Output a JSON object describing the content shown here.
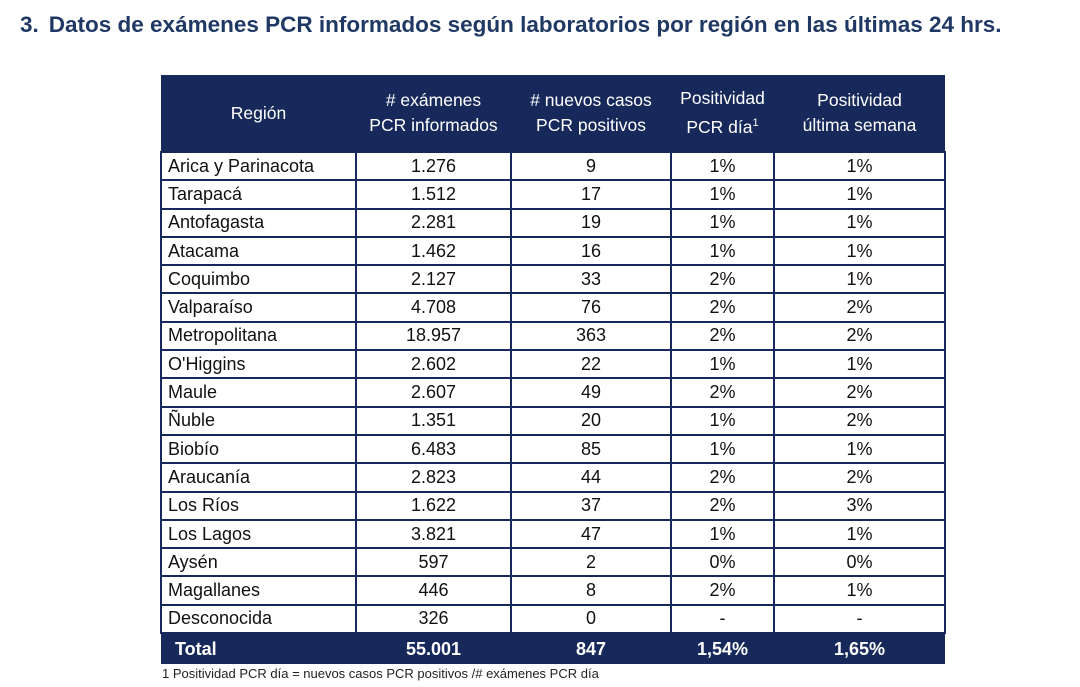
{
  "title": {
    "number": "3.",
    "text": "Datos de exámenes PCR informados según laboratorios por región en las últimas 24 hrs."
  },
  "table": {
    "headers": {
      "region": "Región",
      "examenes_1": "# exámenes",
      "examenes_2": "PCR informados",
      "casos_1": "# nuevos casos",
      "casos_2": "PCR positivos",
      "pos_dia_1": "Positividad",
      "pos_dia_2": "PCR día",
      "pos_dia_sup": "1",
      "pos_sem_1": "Positividad",
      "pos_sem_2": "última semana"
    },
    "rows": [
      {
        "region": "Arica y Parinacota",
        "examenes": "1.276",
        "casos": "9",
        "pos_dia": "1%",
        "pos_semana": "1%"
      },
      {
        "region": "Tarapacá",
        "examenes": "1.512",
        "casos": "17",
        "pos_dia": "1%",
        "pos_semana": "1%"
      },
      {
        "region": "Antofagasta",
        "examenes": "2.281",
        "casos": "19",
        "pos_dia": "1%",
        "pos_semana": "1%"
      },
      {
        "region": "Atacama",
        "examenes": "1.462",
        "casos": "16",
        "pos_dia": "1%",
        "pos_semana": "1%"
      },
      {
        "region": "Coquimbo",
        "examenes": "2.127",
        "casos": "33",
        "pos_dia": "2%",
        "pos_semana": "1%"
      },
      {
        "region": "Valparaíso",
        "examenes": "4.708",
        "casos": "76",
        "pos_dia": "2%",
        "pos_semana": "2%"
      },
      {
        "region": "Metropolitana",
        "examenes": "18.957",
        "casos": "363",
        "pos_dia": "2%",
        "pos_semana": "2%"
      },
      {
        "region": "O'Higgins",
        "examenes": "2.602",
        "casos": "22",
        "pos_dia": "1%",
        "pos_semana": "1%"
      },
      {
        "region": "Maule",
        "examenes": "2.607",
        "casos": "49",
        "pos_dia": "2%",
        "pos_semana": "2%"
      },
      {
        "region": "Ñuble",
        "examenes": "1.351",
        "casos": "20",
        "pos_dia": "1%",
        "pos_semana": "2%"
      },
      {
        "region": "Biobío",
        "examenes": "6.483",
        "casos": "85",
        "pos_dia": "1%",
        "pos_semana": "1%"
      },
      {
        "region": "Araucanía",
        "examenes": "2.823",
        "casos": "44",
        "pos_dia": "2%",
        "pos_semana": "2%"
      },
      {
        "region": "Los Ríos",
        "examenes": "1.622",
        "casos": "37",
        "pos_dia": "2%",
        "pos_semana": "3%"
      },
      {
        "region": "Los Lagos",
        "examenes": "3.821",
        "casos": "47",
        "pos_dia": "1%",
        "pos_semana": "1%"
      },
      {
        "region": "Aysén",
        "examenes": "597",
        "casos": "2",
        "pos_dia": "0%",
        "pos_semana": "0%"
      },
      {
        "region": "Magallanes",
        "examenes": "446",
        "casos": "8",
        "pos_dia": "2%",
        "pos_semana": "1%"
      },
      {
        "region": "Desconocida",
        "examenes": "326",
        "casos": "0",
        "pos_dia": "-",
        "pos_semana": "-"
      }
    ],
    "total": {
      "label": "Total",
      "examenes": "55.001",
      "casos": "847",
      "pos_dia": "1,54%",
      "pos_semana": "1,65%"
    }
  },
  "footnote": "1 Positividad PCR día = nuevos casos PCR positivos /# exámenes PCR día",
  "colors": {
    "header_bg": "#17295a",
    "title": "#1f3864",
    "border": "#17295a"
  }
}
